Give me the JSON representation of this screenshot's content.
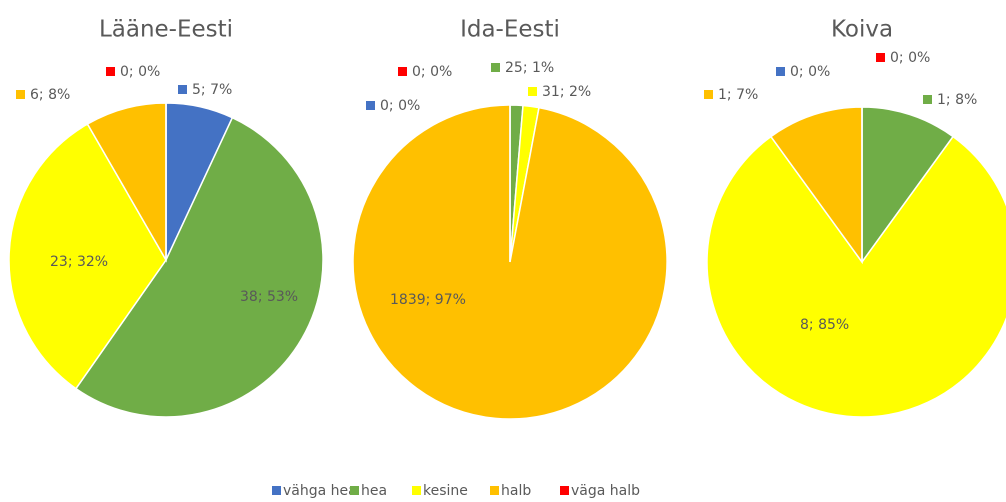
{
  "chart_data": [
    {
      "type": "pie",
      "title": "Lääne-Eesti",
      "categories": [
        "vähga hea",
        "hea",
        "kesine",
        "halb",
        "väga halb"
      ],
      "values": [
        5,
        38,
        23,
        6,
        0
      ],
      "value_labels": [
        "5; 7%",
        "38; 53%",
        "23; 32%",
        "6; 8%",
        "0; 0%"
      ],
      "colors": [
        "#4472c4",
        "#70ad47",
        "#ffff00",
        "#ffc000",
        "#ff0000"
      ]
    },
    {
      "type": "pie",
      "title": "Ida-Eesti",
      "categories": [
        "vähga hea",
        "hea",
        "kesine",
        "halb",
        "väga halb"
      ],
      "values": [
        0,
        25,
        31,
        1839,
        0
      ],
      "value_labels": [
        "0; 0%",
        "25; 1%",
        "31; 2%",
        "1839; 97%",
        "0; 0%"
      ],
      "colors": [
        "#4472c4",
        "#70ad47",
        "#ffff00",
        "#ffc000",
        "#ff0000"
      ]
    },
    {
      "type": "pie",
      "title": "Koiva",
      "categories": [
        "vähga hea",
        "hea",
        "kesine",
        "halb",
        "väga halb"
      ],
      "values": [
        0,
        1,
        8,
        1,
        0
      ],
      "value_labels": [
        "0; 0%",
        "1; 8%",
        "8; 85%",
        "1; 7%",
        "0; 0%"
      ],
      "colors": [
        "#4472c4",
        "#70ad47",
        "#ffff00",
        "#ffc000",
        "#ff0000"
      ]
    }
  ]
}
